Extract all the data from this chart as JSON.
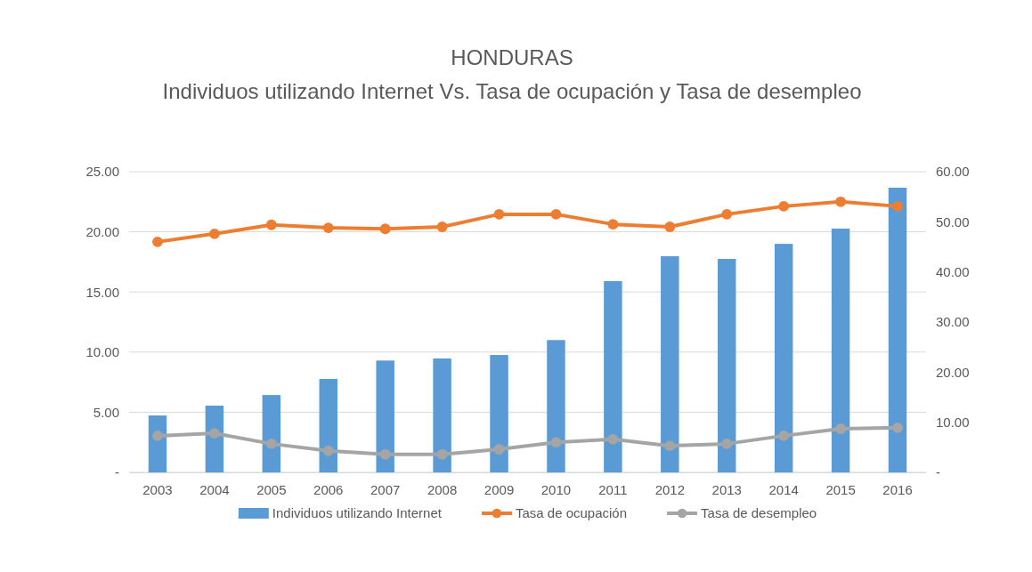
{
  "chart_data": {
    "type": "bar",
    "title": "HONDURAS",
    "subtitle": "Individuos utilizando Internet Vs. Tasa de ocupación y Tasa de desempleo",
    "categories": [
      "2003",
      "2004",
      "2005",
      "2006",
      "2007",
      "2008",
      "2009",
      "2010",
      "2011",
      "2012",
      "2013",
      "2014",
      "2015",
      "2016"
    ],
    "series": [
      {
        "name": "Individuos utilizando Internet",
        "color": "#5b9bd5",
        "values": [
          4.73,
          5.55,
          6.43,
          7.77,
          9.3,
          9.47,
          9.76,
          11.0,
          15.9,
          17.97,
          17.75,
          19.0,
          20.27,
          23.67
        ]
      },
      {
        "name": "Tasa de ocupación",
        "type": "line",
        "axis": "y2",
        "color": "#ed7d31",
        "values": [
          46.0,
          47.6,
          49.4,
          48.8,
          48.6,
          49.0,
          51.5,
          51.5,
          49.5,
          49.0,
          51.5,
          53.1,
          54.0,
          53.1
        ]
      },
      {
        "name": "Tasa de desempleo",
        "type": "line",
        "axis": "y2",
        "color": "#a5a5a5",
        "values": [
          7.3,
          7.8,
          5.7,
          4.3,
          3.6,
          3.6,
          4.6,
          6.0,
          6.6,
          5.3,
          5.7,
          7.3,
          8.7,
          8.9
        ]
      }
    ],
    "ylim": [
      0,
      25
    ],
    "yticks": [
      {
        "value": 0,
        "label": "-"
      },
      {
        "value": 5,
        "label": "5.00"
      },
      {
        "value": 10,
        "label": "10.00"
      },
      {
        "value": 15,
        "label": "15.00"
      },
      {
        "value": 20,
        "label": "20.00"
      },
      {
        "value": 25,
        "label": "25.00"
      }
    ],
    "y2lim": [
      0,
      60
    ],
    "y2ticks": [
      {
        "value": 0,
        "label": "-"
      },
      {
        "value": 10,
        "label": "10.00"
      },
      {
        "value": 20,
        "label": "20.00"
      },
      {
        "value": 30,
        "label": "30.00"
      },
      {
        "value": 40,
        "label": "40.00"
      },
      {
        "value": 50,
        "label": "50.00"
      },
      {
        "value": 60,
        "label": "60.00"
      }
    ],
    "grid": "y",
    "legend": "bottom",
    "marker": "circle",
    "line_style": "solid"
  }
}
